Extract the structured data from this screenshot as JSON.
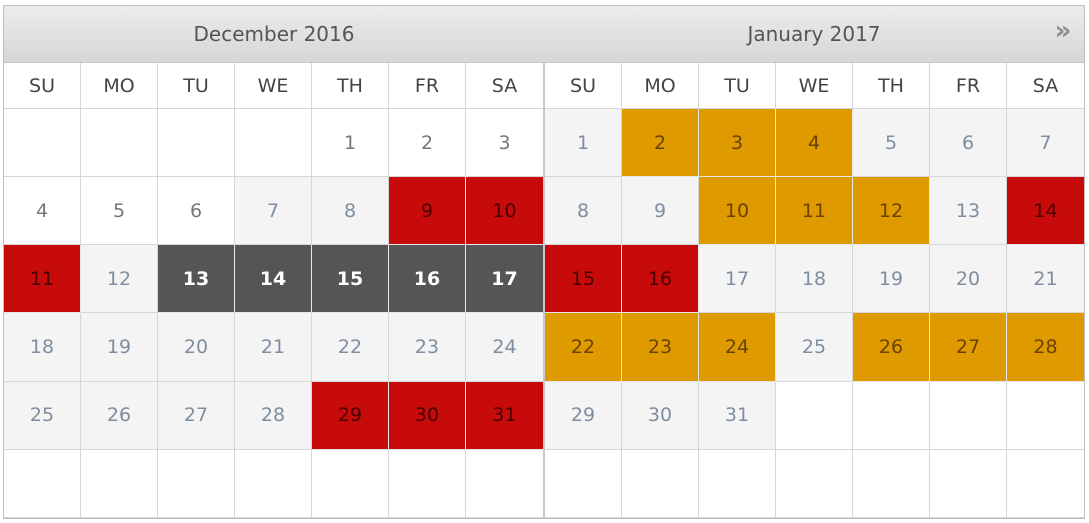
{
  "header": {
    "left_title": "December 2016",
    "right_title": "January 2017",
    "next_label": "»",
    "next_icon": "double-chevron-right-icon"
  },
  "weekdays": [
    "SU",
    "MO",
    "TU",
    "WE",
    "TH",
    "FR",
    "SA"
  ],
  "colors": {
    "booked": "#c70b0b",
    "pending": "#df9a00",
    "selected": "#555555",
    "available": "#f4f4f4"
  },
  "december": [
    {
      "d": "",
      "s": "empty"
    },
    {
      "d": "",
      "s": "empty"
    },
    {
      "d": "",
      "s": "empty"
    },
    {
      "d": "",
      "s": "empty"
    },
    {
      "d": "1",
      "s": "plain"
    },
    {
      "d": "2",
      "s": "plain"
    },
    {
      "d": "3",
      "s": "plain"
    },
    {
      "d": "4",
      "s": "plain"
    },
    {
      "d": "5",
      "s": "plain"
    },
    {
      "d": "6",
      "s": "plain"
    },
    {
      "d": "7",
      "s": "muted"
    },
    {
      "d": "8",
      "s": "muted"
    },
    {
      "d": "9",
      "s": "red"
    },
    {
      "d": "10",
      "s": "red"
    },
    {
      "d": "11",
      "s": "red"
    },
    {
      "d": "12",
      "s": "muted"
    },
    {
      "d": "13",
      "s": "dark"
    },
    {
      "d": "14",
      "s": "dark"
    },
    {
      "d": "15",
      "s": "dark"
    },
    {
      "d": "16",
      "s": "dark"
    },
    {
      "d": "17",
      "s": "dark"
    },
    {
      "d": "18",
      "s": "muted"
    },
    {
      "d": "19",
      "s": "muted"
    },
    {
      "d": "20",
      "s": "muted"
    },
    {
      "d": "21",
      "s": "muted"
    },
    {
      "d": "22",
      "s": "muted"
    },
    {
      "d": "23",
      "s": "muted"
    },
    {
      "d": "24",
      "s": "muted"
    },
    {
      "d": "25",
      "s": "muted"
    },
    {
      "d": "26",
      "s": "muted"
    },
    {
      "d": "27",
      "s": "muted"
    },
    {
      "d": "28",
      "s": "muted"
    },
    {
      "d": "29",
      "s": "red"
    },
    {
      "d": "30",
      "s": "red"
    },
    {
      "d": "31",
      "s": "red"
    },
    {
      "d": "",
      "s": "empty"
    },
    {
      "d": "",
      "s": "empty"
    },
    {
      "d": "",
      "s": "empty"
    },
    {
      "d": "",
      "s": "empty"
    },
    {
      "d": "",
      "s": "empty"
    },
    {
      "d": "",
      "s": "empty"
    },
    {
      "d": "",
      "s": "empty"
    }
  ],
  "january": [
    {
      "d": "1",
      "s": "muted"
    },
    {
      "d": "2",
      "s": "orange"
    },
    {
      "d": "3",
      "s": "orange"
    },
    {
      "d": "4",
      "s": "orange"
    },
    {
      "d": "5",
      "s": "muted"
    },
    {
      "d": "6",
      "s": "muted"
    },
    {
      "d": "7",
      "s": "muted"
    },
    {
      "d": "8",
      "s": "muted"
    },
    {
      "d": "9",
      "s": "muted"
    },
    {
      "d": "10",
      "s": "orange"
    },
    {
      "d": "11",
      "s": "orange"
    },
    {
      "d": "12",
      "s": "orange"
    },
    {
      "d": "13",
      "s": "muted"
    },
    {
      "d": "14",
      "s": "red"
    },
    {
      "d": "15",
      "s": "red"
    },
    {
      "d": "16",
      "s": "red"
    },
    {
      "d": "17",
      "s": "muted"
    },
    {
      "d": "18",
      "s": "muted"
    },
    {
      "d": "19",
      "s": "muted"
    },
    {
      "d": "20",
      "s": "muted"
    },
    {
      "d": "21",
      "s": "muted"
    },
    {
      "d": "22",
      "s": "orange"
    },
    {
      "d": "23",
      "s": "orange"
    },
    {
      "d": "24",
      "s": "orange"
    },
    {
      "d": "25",
      "s": "muted"
    },
    {
      "d": "26",
      "s": "orange"
    },
    {
      "d": "27",
      "s": "orange"
    },
    {
      "d": "28",
      "s": "orange"
    },
    {
      "d": "29",
      "s": "muted"
    },
    {
      "d": "30",
      "s": "muted"
    },
    {
      "d": "31",
      "s": "muted"
    },
    {
      "d": "",
      "s": "empty"
    },
    {
      "d": "",
      "s": "empty"
    },
    {
      "d": "",
      "s": "empty"
    },
    {
      "d": "",
      "s": "empty"
    },
    {
      "d": "",
      "s": "empty"
    },
    {
      "d": "",
      "s": "empty"
    },
    {
      "d": "",
      "s": "empty"
    },
    {
      "d": "",
      "s": "empty"
    },
    {
      "d": "",
      "s": "empty"
    },
    {
      "d": "",
      "s": "empty"
    },
    {
      "d": "",
      "s": "empty"
    }
  ]
}
